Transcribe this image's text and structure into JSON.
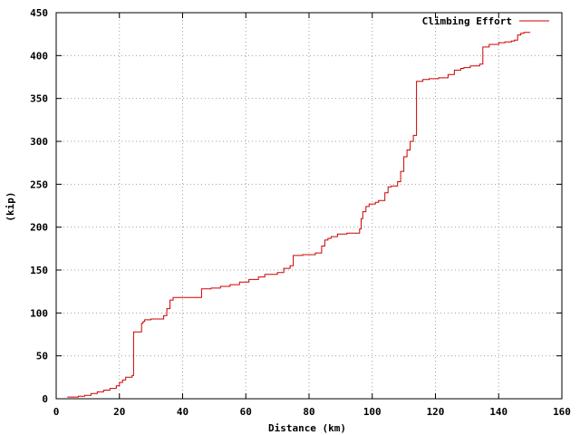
{
  "chart_data": {
    "type": "line",
    "title": "",
    "xlabel": "Distance (km)",
    "ylabel": "(kip)",
    "xlim": [
      0,
      160
    ],
    "ylim": [
      0,
      450
    ],
    "xticks": [
      0,
      20,
      40,
      60,
      80,
      100,
      120,
      140,
      160
    ],
    "yticks": [
      0,
      50,
      100,
      150,
      200,
      250,
      300,
      350,
      400,
      450
    ],
    "grid": true,
    "legend_position": "top-right",
    "series": [
      {
        "name": "Climbing Effort",
        "color": "#cc0000",
        "step": true,
        "x": [
          3.5,
          5,
          7,
          9,
          11,
          13,
          15,
          17,
          19,
          20,
          21,
          22,
          24,
          24.5,
          25.5,
          27,
          27.5,
          28,
          30,
          33,
          34,
          35,
          36,
          37,
          40,
          43,
          45,
          46,
          49,
          52,
          55,
          58,
          61,
          64,
          66,
          70,
          72,
          74,
          75,
          78,
          80,
          82,
          84,
          85,
          86,
          87,
          89,
          92,
          95,
          96,
          96.5,
          97,
          98,
          99,
          101,
          102,
          104,
          105,
          106,
          108,
          109,
          110,
          111,
          112,
          113,
          114,
          115,
          116,
          118,
          121,
          124,
          126,
          128,
          129,
          131,
          134,
          135,
          137,
          140,
          142,
          144,
          145,
          146,
          147,
          148,
          150
        ],
        "values": [
          2,
          2,
          3,
          4,
          6,
          8,
          10,
          12,
          15,
          19,
          22,
          25,
          27,
          78,
          78,
          88,
          90,
          92,
          93,
          93,
          97,
          105,
          115,
          118,
          118,
          118,
          118,
          128,
          129,
          131,
          133,
          136,
          139,
          142,
          145,
          147,
          152,
          155,
          167,
          168,
          168,
          170,
          178,
          185,
          187,
          189,
          192,
          193,
          193,
          198,
          210,
          218,
          224,
          227,
          229,
          231,
          240,
          247,
          248,
          253,
          265,
          282,
          290,
          300,
          307,
          370,
          370,
          372,
          373,
          374,
          378,
          383,
          385,
          386,
          388,
          390,
          410,
          413,
          415,
          416,
          417,
          418,
          424,
          426,
          427,
          427
        ]
      }
    ]
  }
}
